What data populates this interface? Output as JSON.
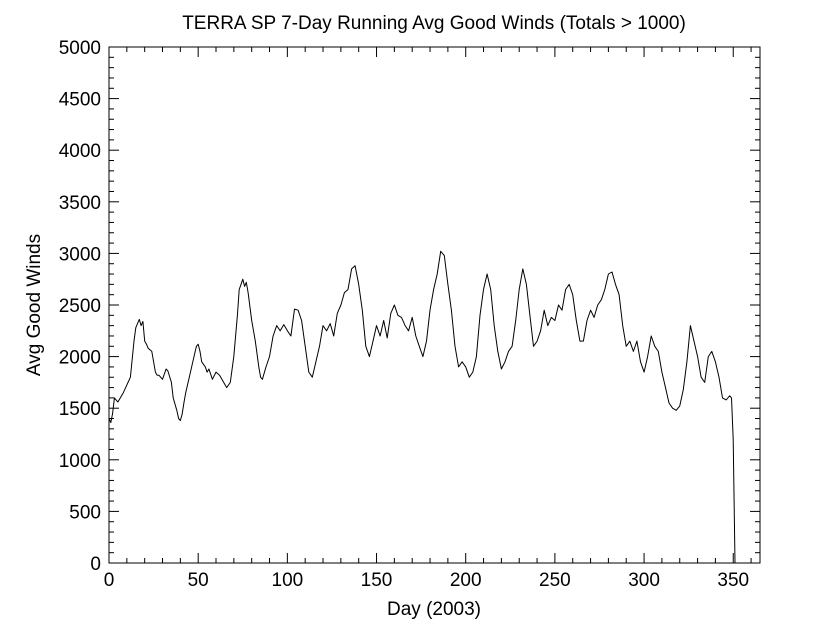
{
  "chart_data": {
    "type": "line",
    "title": "TERRA SP 7-Day Running Avg Good Winds (Totals > 1000)",
    "xlabel": "Day (2003)",
    "ylabel": "Avg Good Winds",
    "xlim": [
      0,
      365
    ],
    "ylim": [
      0,
      5000
    ],
    "x_ticks": [
      0,
      50,
      100,
      150,
      200,
      250,
      300,
      350
    ],
    "y_ticks": [
      0,
      500,
      1000,
      1500,
      2000,
      2500,
      3000,
      3500,
      4000,
      4500,
      5000
    ],
    "grid": false,
    "line_color": "#000000",
    "series": [
      {
        "x": [
          0,
          1,
          2,
          3,
          4,
          5,
          8,
          12,
          14,
          15,
          16,
          17,
          18,
          19,
          20,
          21,
          22,
          24,
          26,
          27,
          28,
          30,
          32,
          33,
          35,
          36,
          38,
          39,
          40,
          41,
          42,
          43,
          45,
          47,
          49,
          50,
          51,
          52,
          54,
          55,
          56,
          58,
          60,
          62,
          64,
          66,
          68,
          70,
          72,
          73,
          74,
          75,
          76,
          77,
          78,
          80,
          82,
          84,
          85,
          86,
          88,
          90,
          92,
          94,
          96,
          98,
          100,
          102,
          104,
          106,
          108,
          110,
          112,
          114,
          116,
          118,
          120,
          122,
          124,
          126,
          128,
          130,
          132,
          134,
          136,
          138,
          140,
          142,
          144,
          146,
          148,
          150,
          152,
          154,
          156,
          158,
          160,
          162,
          164,
          166,
          168,
          170,
          172,
          174,
          176,
          178,
          180,
          182,
          184,
          186,
          188,
          190,
          192,
          194,
          196,
          198,
          200,
          202,
          204,
          206,
          208,
          210,
          212,
          214,
          216,
          218,
          220,
          222,
          224,
          226,
          228,
          230,
          232,
          234,
          236,
          238,
          240,
          242,
          244,
          246,
          248,
          250,
          252,
          254,
          256,
          258,
          260,
          262,
          264,
          266,
          268,
          270,
          272,
          274,
          276,
          278,
          280,
          282,
          284,
          286,
          288,
          290,
          292,
          294,
          296,
          298,
          300,
          302,
          304,
          306,
          308,
          310,
          312,
          314,
          316,
          318,
          320,
          322,
          324,
          326,
          328,
          330,
          332,
          334,
          336,
          338,
          340,
          342,
          344,
          346,
          348,
          349,
          350,
          351
        ],
        "y": [
          1400,
          1360,
          1450,
          1600,
          1580,
          1560,
          1650,
          1800,
          2150,
          2280,
          2320,
          2360,
          2300,
          2340,
          2150,
          2120,
          2080,
          2050,
          1850,
          1820,
          1820,
          1780,
          1880,
          1860,
          1750,
          1600,
          1480,
          1400,
          1380,
          1440,
          1550,
          1650,
          1800,
          1950,
          2100,
          2120,
          2050,
          1950,
          1900,
          1850,
          1880,
          1780,
          1850,
          1820,
          1760,
          1700,
          1750,
          2000,
          2400,
          2650,
          2700,
          2750,
          2680,
          2720,
          2620,
          2350,
          2150,
          1900,
          1800,
          1780,
          1900,
          2000,
          2200,
          2300,
          2250,
          2310,
          2250,
          2200,
          2460,
          2450,
          2350,
          2100,
          1850,
          1800,
          1950,
          2100,
          2300,
          2250,
          2320,
          2200,
          2420,
          2500,
          2620,
          2650,
          2850,
          2880,
          2700,
          2450,
          2100,
          2000,
          2150,
          2300,
          2200,
          2350,
          2180,
          2420,
          2500,
          2400,
          2380,
          2300,
          2250,
          2380,
          2200,
          2100,
          2000,
          2150,
          2450,
          2650,
          2800,
          3020,
          2980,
          2700,
          2450,
          2100,
          1900,
          1950,
          1900,
          1800,
          1850,
          2000,
          2400,
          2650,
          2800,
          2650,
          2300,
          2050,
          1880,
          1950,
          2050,
          2100,
          2350,
          2650,
          2850,
          2700,
          2400,
          2100,
          2150,
          2250,
          2450,
          2300,
          2380,
          2350,
          2500,
          2450,
          2650,
          2700,
          2600,
          2350,
          2150,
          2150,
          2350,
          2450,
          2380,
          2500,
          2550,
          2650,
          2800,
          2820,
          2700,
          2600,
          2300,
          2100,
          2150,
          2050,
          2150,
          1950,
          1850,
          2000,
          2200,
          2100,
          2050,
          1850,
          1700,
          1550,
          1500,
          1480,
          1520,
          1680,
          1950,
          2300,
          2150,
          2000,
          1800,
          1750,
          2000,
          2050,
          1950,
          1800,
          1600,
          1580,
          1620,
          1600,
          1200,
          0
        ]
      }
    ]
  }
}
